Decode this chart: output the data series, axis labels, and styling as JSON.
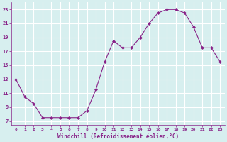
{
  "x": [
    0,
    1,
    2,
    3,
    4,
    5,
    6,
    7,
    8,
    9,
    10,
    11,
    12,
    13,
    14,
    15,
    16,
    17,
    18,
    19,
    20,
    21,
    22,
    23
  ],
  "y": [
    13,
    10.5,
    9.5,
    7.5,
    7.5,
    7.5,
    7.5,
    7.5,
    8.5,
    11.5,
    15.5,
    18.5,
    17.5,
    17.5,
    19,
    21,
    22.5,
    23,
    23,
    22.5,
    20.5,
    17.5,
    17.5,
    15.5
  ],
  "line_color": "#882288",
  "marker": "D",
  "marker_size": 2,
  "bg_color": "#d7efef",
  "grid_color": "#ffffff",
  "xlabel": "Windchill (Refroidissement éolien,°C)",
  "xlabel_color": "#882288",
  "tick_color": "#882288",
  "ylim": [
    6.5,
    24
  ],
  "xlim": [
    -0.5,
    23.5
  ],
  "yticks": [
    7,
    9,
    11,
    13,
    15,
    17,
    19,
    21,
    23
  ],
  "xticks": [
    0,
    1,
    2,
    3,
    4,
    5,
    6,
    7,
    8,
    9,
    10,
    11,
    12,
    13,
    14,
    15,
    16,
    17,
    18,
    19,
    20,
    21,
    22,
    23
  ],
  "figwidth": 3.2,
  "figheight": 2.0,
  "dpi": 100
}
